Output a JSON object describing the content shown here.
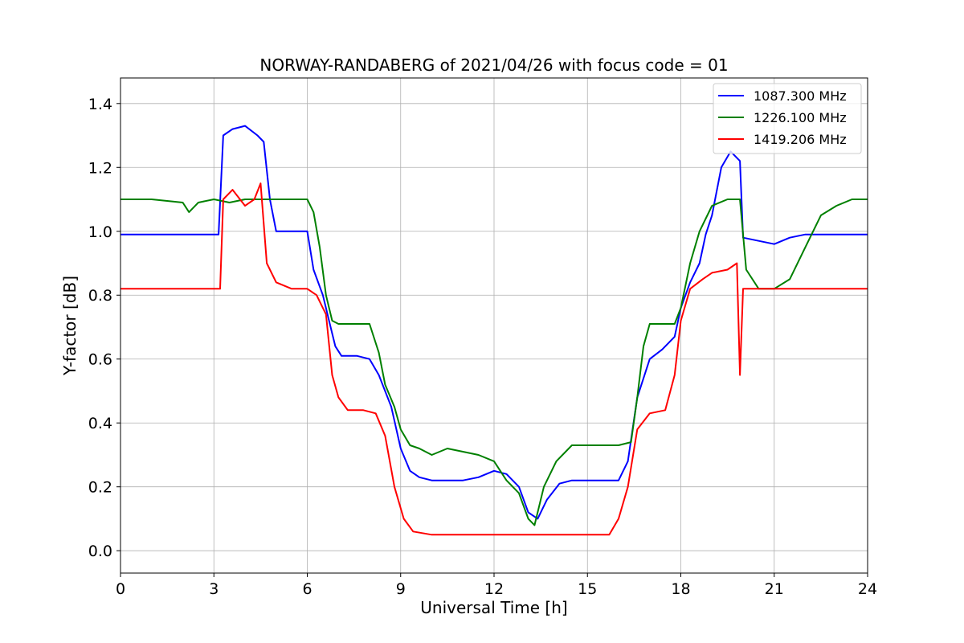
{
  "chart_data": {
    "type": "line",
    "title": "NORWAY-RANDABERG of 2021/04/26 with focus code = 01",
    "xlabel": "Universal Time [h]",
    "ylabel": "Y-factor [dB]",
    "xlim": [
      0,
      24
    ],
    "ylim": [
      -0.07,
      1.48
    ],
    "xticks": [
      0,
      3,
      6,
      9,
      12,
      15,
      18,
      21,
      24
    ],
    "xtick_labels": [
      "0",
      "3",
      "6",
      "9",
      "12",
      "15",
      "18",
      "21",
      "24"
    ],
    "yticks": [
      0.0,
      0.2,
      0.4,
      0.6,
      0.8,
      1.0,
      1.2,
      1.4
    ],
    "ytick_labels": [
      "0.0",
      "0.2",
      "0.4",
      "0.6",
      "0.8",
      "1.0",
      "1.2",
      "1.4"
    ],
    "grid": true,
    "legend_position": "top-right",
    "series": [
      {
        "name": "1087.300 MHz",
        "color": "#0000ff",
        "points": [
          [
            0,
            0.99
          ],
          [
            1,
            0.99
          ],
          [
            2,
            0.99
          ],
          [
            3,
            0.99
          ],
          [
            3.15,
            0.99
          ],
          [
            3.3,
            1.3
          ],
          [
            3.6,
            1.32
          ],
          [
            4,
            1.33
          ],
          [
            4.4,
            1.3
          ],
          [
            4.6,
            1.28
          ],
          [
            4.8,
            1.1
          ],
          [
            5.0,
            1.0
          ],
          [
            5.5,
            1.0
          ],
          [
            6.0,
            1.0
          ],
          [
            6.2,
            0.88
          ],
          [
            6.5,
            0.8
          ],
          [
            6.7,
            0.72
          ],
          [
            6.9,
            0.64
          ],
          [
            7.1,
            0.61
          ],
          [
            7.6,
            0.61
          ],
          [
            8.0,
            0.6
          ],
          [
            8.3,
            0.55
          ],
          [
            8.7,
            0.45
          ],
          [
            9.0,
            0.32
          ],
          [
            9.3,
            0.25
          ],
          [
            9.6,
            0.23
          ],
          [
            10,
            0.22
          ],
          [
            10.5,
            0.22
          ],
          [
            11,
            0.22
          ],
          [
            11.5,
            0.23
          ],
          [
            12,
            0.25
          ],
          [
            12.4,
            0.24
          ],
          [
            12.8,
            0.2
          ],
          [
            13.1,
            0.12
          ],
          [
            13.4,
            0.1
          ],
          [
            13.7,
            0.16
          ],
          [
            14.1,
            0.21
          ],
          [
            14.5,
            0.22
          ],
          [
            15.0,
            0.22
          ],
          [
            15.6,
            0.22
          ],
          [
            16.0,
            0.22
          ],
          [
            16.3,
            0.28
          ],
          [
            16.6,
            0.48
          ],
          [
            17.0,
            0.6
          ],
          [
            17.4,
            0.63
          ],
          [
            17.8,
            0.67
          ],
          [
            18.0,
            0.76
          ],
          [
            18.3,
            0.84
          ],
          [
            18.6,
            0.9
          ],
          [
            18.8,
            0.99
          ],
          [
            19.0,
            1.05
          ],
          [
            19.3,
            1.2
          ],
          [
            19.6,
            1.25
          ],
          [
            19.9,
            1.22
          ],
          [
            20.0,
            0.98
          ],
          [
            20.5,
            0.97
          ],
          [
            21.0,
            0.96
          ],
          [
            21.5,
            0.98
          ],
          [
            22.0,
            0.99
          ],
          [
            22.5,
            0.99
          ],
          [
            23.0,
            0.99
          ],
          [
            24.0,
            0.99
          ]
        ]
      },
      {
        "name": "1226.100 MHz",
        "color": "#008000",
        "points": [
          [
            0,
            1.1
          ],
          [
            1,
            1.1
          ],
          [
            2,
            1.09
          ],
          [
            2.2,
            1.06
          ],
          [
            2.5,
            1.09
          ],
          [
            3,
            1.1
          ],
          [
            3.5,
            1.09
          ],
          [
            4.0,
            1.1
          ],
          [
            4.5,
            1.1
          ],
          [
            5,
            1.1
          ],
          [
            5.5,
            1.1
          ],
          [
            6.0,
            1.1
          ],
          [
            6.2,
            1.06
          ],
          [
            6.4,
            0.95
          ],
          [
            6.6,
            0.8
          ],
          [
            6.8,
            0.72
          ],
          [
            7.0,
            0.71
          ],
          [
            7.5,
            0.71
          ],
          [
            8.0,
            0.71
          ],
          [
            8.3,
            0.62
          ],
          [
            8.5,
            0.52
          ],
          [
            8.8,
            0.45
          ],
          [
            9.0,
            0.38
          ],
          [
            9.3,
            0.33
          ],
          [
            9.6,
            0.32
          ],
          [
            10.0,
            0.3
          ],
          [
            10.5,
            0.32
          ],
          [
            11.0,
            0.31
          ],
          [
            11.5,
            0.3
          ],
          [
            12.0,
            0.28
          ],
          [
            12.4,
            0.22
          ],
          [
            12.8,
            0.18
          ],
          [
            13.1,
            0.1
          ],
          [
            13.3,
            0.08
          ],
          [
            13.6,
            0.2
          ],
          [
            14.0,
            0.28
          ],
          [
            14.5,
            0.33
          ],
          [
            15.0,
            0.33
          ],
          [
            15.5,
            0.33
          ],
          [
            16.0,
            0.33
          ],
          [
            16.4,
            0.34
          ],
          [
            16.6,
            0.48
          ],
          [
            16.8,
            0.64
          ],
          [
            17.0,
            0.71
          ],
          [
            17.5,
            0.71
          ],
          [
            17.8,
            0.71
          ],
          [
            18.0,
            0.76
          ],
          [
            18.3,
            0.9
          ],
          [
            18.6,
            1.0
          ],
          [
            19.0,
            1.08
          ],
          [
            19.5,
            1.1
          ],
          [
            19.9,
            1.1
          ],
          [
            20.1,
            0.88
          ],
          [
            20.5,
            0.82
          ],
          [
            21.0,
            0.82
          ],
          [
            21.5,
            0.85
          ],
          [
            22.0,
            0.95
          ],
          [
            22.5,
            1.05
          ],
          [
            23.0,
            1.08
          ],
          [
            23.5,
            1.1
          ],
          [
            24.0,
            1.1
          ]
        ]
      },
      {
        "name": "1419.206 MHz",
        "color": "#ff0000",
        "points": [
          [
            0,
            0.82
          ],
          [
            1,
            0.82
          ],
          [
            2,
            0.82
          ],
          [
            3,
            0.82
          ],
          [
            3.2,
            0.82
          ],
          [
            3.3,
            1.1
          ],
          [
            3.6,
            1.13
          ],
          [
            4.0,
            1.08
          ],
          [
            4.3,
            1.1
          ],
          [
            4.5,
            1.15
          ],
          [
            4.7,
            0.9
          ],
          [
            5.0,
            0.84
          ],
          [
            5.5,
            0.82
          ],
          [
            6.0,
            0.82
          ],
          [
            6.3,
            0.8
          ],
          [
            6.6,
            0.74
          ],
          [
            6.8,
            0.55
          ],
          [
            7.0,
            0.48
          ],
          [
            7.3,
            0.44
          ],
          [
            7.8,
            0.44
          ],
          [
            8.2,
            0.43
          ],
          [
            8.5,
            0.36
          ],
          [
            8.8,
            0.2
          ],
          [
            9.1,
            0.1
          ],
          [
            9.4,
            0.06
          ],
          [
            10,
            0.05
          ],
          [
            11,
            0.05
          ],
          [
            12,
            0.05
          ],
          [
            13,
            0.05
          ],
          [
            14,
            0.05
          ],
          [
            15,
            0.05
          ],
          [
            15.7,
            0.05
          ],
          [
            16.0,
            0.1
          ],
          [
            16.3,
            0.2
          ],
          [
            16.6,
            0.38
          ],
          [
            17.0,
            0.43
          ],
          [
            17.5,
            0.44
          ],
          [
            17.8,
            0.55
          ],
          [
            18.0,
            0.72
          ],
          [
            18.3,
            0.82
          ],
          [
            18.7,
            0.85
          ],
          [
            19.0,
            0.87
          ],
          [
            19.5,
            0.88
          ],
          [
            19.8,
            0.9
          ],
          [
            19.9,
            0.55
          ],
          [
            20.0,
            0.82
          ],
          [
            20.5,
            0.82
          ],
          [
            21.0,
            0.82
          ],
          [
            22.0,
            0.82
          ],
          [
            23.0,
            0.82
          ],
          [
            24.0,
            0.82
          ]
        ]
      }
    ]
  }
}
